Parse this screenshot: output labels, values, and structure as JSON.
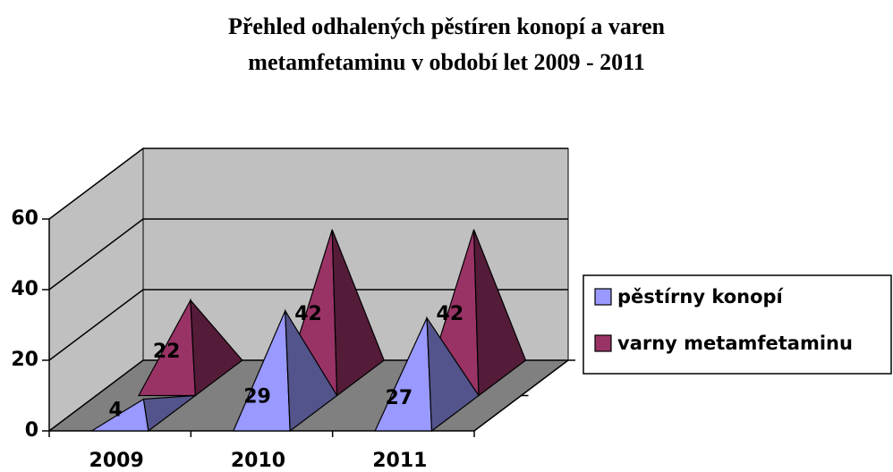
{
  "chart_data": {
    "type": "pyramid3d",
    "title": "Přehled odhalených pěstíren konopí a varen metamfetaminu v období let 2009 - 2011",
    "categories": [
      "2009",
      "2010",
      "2011"
    ],
    "series": [
      {
        "name": "pěstírny konopí",
        "color": "#9999ff",
        "values": [
          4,
          29,
          27
        ]
      },
      {
        "name": "varny metamfetaminu",
        "color": "#993366",
        "values": [
          22,
          42,
          42
        ]
      }
    ],
    "ylim": [
      0,
      60
    ],
    "yticks": [
      0,
      20,
      40,
      60
    ],
    "grid": true,
    "legend": "right"
  }
}
